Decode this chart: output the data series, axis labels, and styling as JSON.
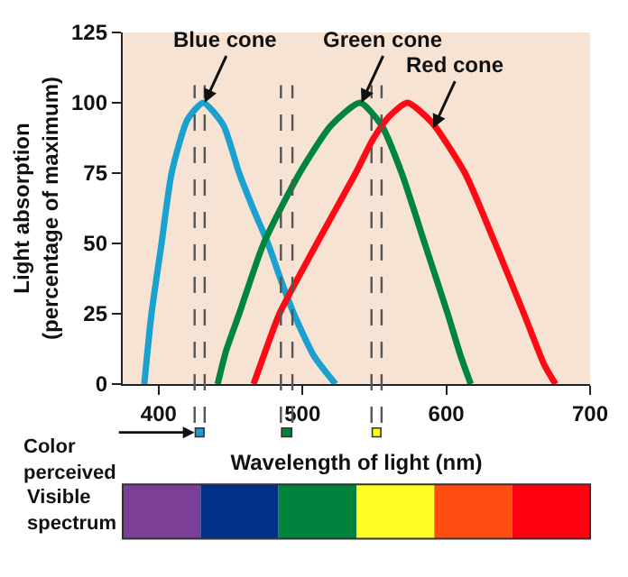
{
  "chart_data": {
    "type": "line",
    "xlabel": "Wavelength of light (nm)",
    "ylabel": "Light absorption\n(percentage of maximum)",
    "xlim": [
      375,
      700
    ],
    "xticks": [
      400,
      500,
      600,
      700
    ],
    "ylim": [
      0,
      125
    ],
    "yticks": [
      0,
      25,
      50,
      75,
      100,
      125
    ],
    "grid": false,
    "marker": "none",
    "line_style": "solid",
    "series": [
      {
        "color": "#1ba1d0",
        "x": [
          390,
          395,
          402,
          409,
          420,
          431,
          445,
          456,
          466,
          476,
          485,
          494,
          508,
          523
        ],
        "values": [
          0,
          25,
          50,
          75,
          94,
          100,
          92,
          75,
          62,
          50,
          37,
          25,
          10,
          0
        ]
      },
      {
        "color": "#00853f",
        "x": [
          441,
          447,
          456,
          473,
          498,
          520,
          540,
          555,
          569,
          585,
          601,
          610,
          617
        ],
        "values": [
          0,
          12,
          25,
          50,
          75,
          92,
          100,
          92,
          75,
          50,
          25,
          10,
          0
        ]
      },
      {
        "color": "#ff0a14",
        "x": [
          466,
          473,
          484,
          510,
          537,
          549,
          560,
          573,
          590,
          613,
          634,
          654,
          668,
          676
        ],
        "values": [
          0,
          10,
          25,
          50,
          75,
          87,
          95,
          100,
          93,
          75,
          50,
          25,
          7,
          0
        ]
      }
    ],
    "ref_lines": [
      {
        "axis": "x",
        "value": 425,
        "color": "#555555",
        "line_style": "dashed"
      },
      {
        "axis": "x",
        "value": 432,
        "color": "#555555",
        "line_style": "dashed"
      },
      {
        "axis": "x",
        "value": 485,
        "color": "#555555",
        "line_style": "dashed"
      },
      {
        "axis": "x",
        "value": 493,
        "color": "#555555",
        "line_style": "dashed"
      },
      {
        "axis": "x",
        "value": 548,
        "color": "#555555",
        "line_style": "dashed"
      },
      {
        "axis": "x",
        "value": 555,
        "color": "#555555",
        "line_style": "dashed"
      }
    ],
    "annotations": [
      {
        "text": "Blue cone",
        "x": 432,
        "y": 100
      },
      {
        "text": "Green cone",
        "x": 541,
        "y": 100
      },
      {
        "text": "Red cone",
        "x": 591,
        "y": 91
      },
      "Color\nperceived",
      "Visible\nspectrum"
    ]
  }
}
